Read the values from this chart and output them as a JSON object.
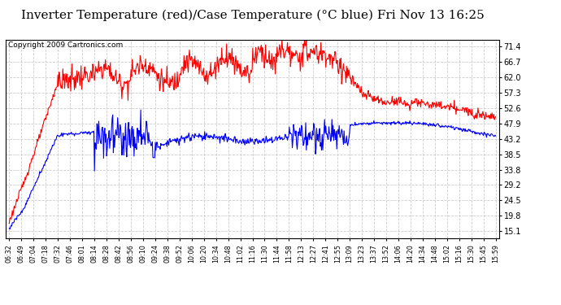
{
  "title": "Inverter Temperature (red)/Case Temperature (°C blue) Fri Nov 13 16:25",
  "copyright": "Copyright 2009 Cartronics.com",
  "yticks": [
    15.1,
    19.8,
    24.5,
    29.2,
    33.8,
    38.5,
    43.2,
    47.9,
    52.6,
    57.3,
    62.0,
    66.7,
    71.4
  ],
  "ylim": [
    13.0,
    73.5
  ],
  "xtick_labels": [
    "06:32",
    "06:49",
    "07:04",
    "07:18",
    "07:32",
    "07:46",
    "08:01",
    "08:14",
    "08:28",
    "08:42",
    "08:56",
    "09:10",
    "09:24",
    "09:38",
    "09:52",
    "10:06",
    "10:20",
    "10:34",
    "10:48",
    "11:02",
    "11:16",
    "11:30",
    "11:44",
    "11:58",
    "12:13",
    "12:27",
    "12:41",
    "12:55",
    "13:09",
    "13:23",
    "13:37",
    "13:52",
    "14:06",
    "14:20",
    "14:34",
    "14:48",
    "15:02",
    "15:16",
    "15:30",
    "15:45",
    "15:59"
  ],
  "background_color": "#ffffff",
  "plot_bg_color": "#ffffff",
  "grid_color": "#cccccc",
  "red_color": "#ff0000",
  "blue_color": "#0000ff",
  "title_fontsize": 11,
  "copyright_fontsize": 6.5
}
